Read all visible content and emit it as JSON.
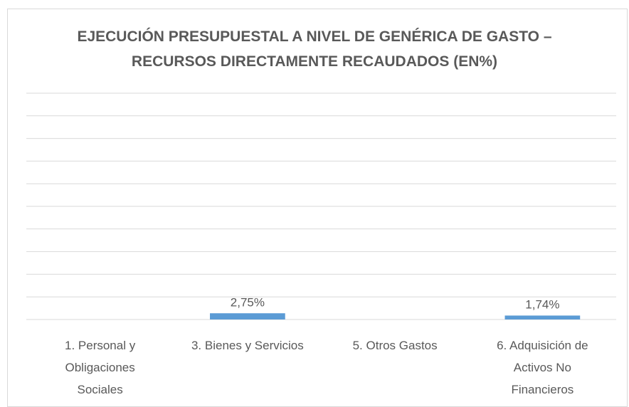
{
  "chart_data": {
    "type": "bar",
    "title": "EJECUCIÓN PRESUPUESTAL A NIVEL DE GENÉRICA DE GASTO – RECURSOS DIRECTAMENTE RECAUDADOS (EN%)",
    "categories": [
      "1. Personal y Obligaciones Sociales",
      "3. Bienes y Servicios",
      "5. Otros Gastos",
      "6. Adquisición de Activos No Financieros"
    ],
    "values": [
      null,
      2.75,
      null,
      1.74
    ],
    "value_labels": [
      null,
      "2,75%",
      null,
      "1,74%"
    ],
    "color": "#5b9bd5",
    "ylim": [
      0,
      100
    ],
    "yticks": [
      0,
      10,
      20,
      30,
      40,
      50,
      60,
      70,
      80,
      90,
      100
    ],
    "grid": true
  }
}
